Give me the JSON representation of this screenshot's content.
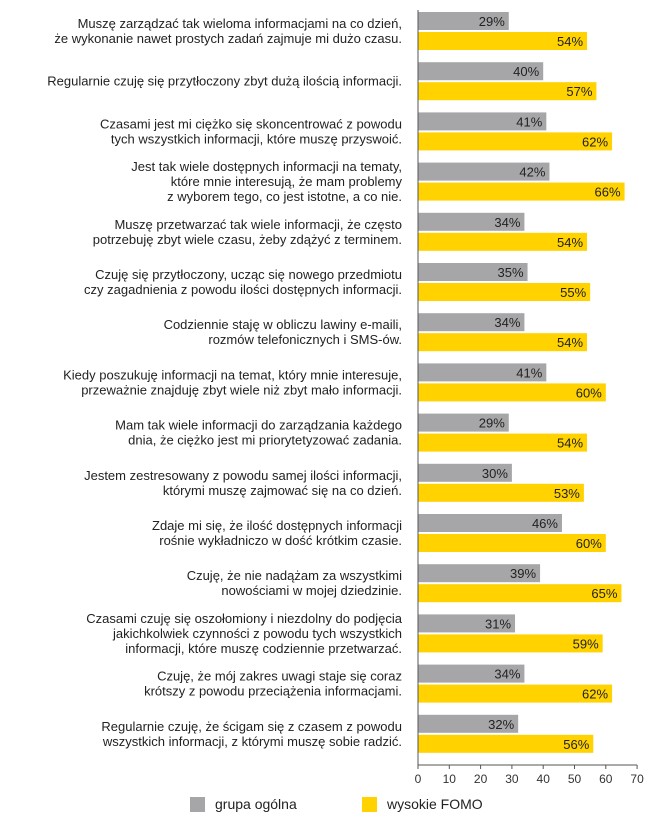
{
  "chart_data": {
    "type": "bar",
    "orientation": "horizontal",
    "title": "",
    "xlabel": "",
    "ylabel": "",
    "xlim": [
      0,
      70
    ],
    "xticks": [
      0,
      10,
      20,
      30,
      40,
      50,
      60,
      70
    ],
    "value_suffix": "%",
    "categories": [
      [
        "Muszę zarządzać tak wieloma informacjami na co dzień,",
        "że wykonanie nawet prostych zadań zajmuje mi dużo czasu."
      ],
      [
        "Regularnie czuję się przytłoczony zbyt dużą ilością informacji."
      ],
      [
        "Czasami jest mi ciężko się skoncentrować z powodu",
        "tych wszystkich informacji, które muszę przyswoić."
      ],
      [
        "Jest tak wiele dostępnych informacji na tematy,",
        "które mnie interesują, że mam problemy",
        "z wyborem tego, co jest istotne, a co nie."
      ],
      [
        "Muszę przetwarzać tak wiele informacji, że często",
        "potrzebuję zbyt wiele czasu, żeby zdążyć z terminem."
      ],
      [
        "Czuję się przytłoczony, ucząc się nowego przedmiotu",
        "czy zagadnienia z powodu ilości dostępnych informacji."
      ],
      [
        "Codziennie staję w obliczu lawiny e-maili,",
        "rozmów telefonicznych i SMS-ów."
      ],
      [
        "Kiedy poszukuję informacji na temat, który mnie interesuje,",
        "przeważnie znajduję zbyt wiele niż zbyt mało informacji."
      ],
      [
        "Mam tak wiele informacji do zarządzania każdego",
        "dnia, że ciężko jest mi priorytetyzować zadania."
      ],
      [
        "Jestem zestresowany z powodu samej ilości informacji,",
        "którymi muszę zajmować się na co dzień."
      ],
      [
        "Zdaje mi się, że ilość dostępnych informacji",
        "rośnie wykładniczo w dość krótkim czasie."
      ],
      [
        "Czuję, że nie nadążam za wszystkimi",
        "nowościami w mojej dziedzinie."
      ],
      [
        "Czasami czuję się oszołomiony i niezdolny do podjęcia",
        "jakichkolwiek czynności z powodu tych wszystkich",
        "informacji, które muszę codziennie przetwarzać."
      ],
      [
        "Czuję, że mój zakres uwagi staje się coraz",
        "krótszy z powodu przeciążenia informacjami."
      ],
      [
        "Regularnie czuję, że ścigam się z czasem z powodu",
        "wszystkich informacji, z którymi muszę sobie radzić."
      ]
    ],
    "series": [
      {
        "name": "grupa ogólna",
        "color": "#a6a6a8",
        "values": [
          29,
          40,
          41,
          42,
          34,
          35,
          34,
          41,
          29,
          30,
          46,
          39,
          31,
          34,
          32
        ]
      },
      {
        "name": "wysokie FOMO",
        "color": "#ffd200",
        "values": [
          54,
          57,
          62,
          66,
          54,
          55,
          54,
          60,
          54,
          53,
          60,
          65,
          59,
          62,
          56
        ]
      }
    ]
  }
}
